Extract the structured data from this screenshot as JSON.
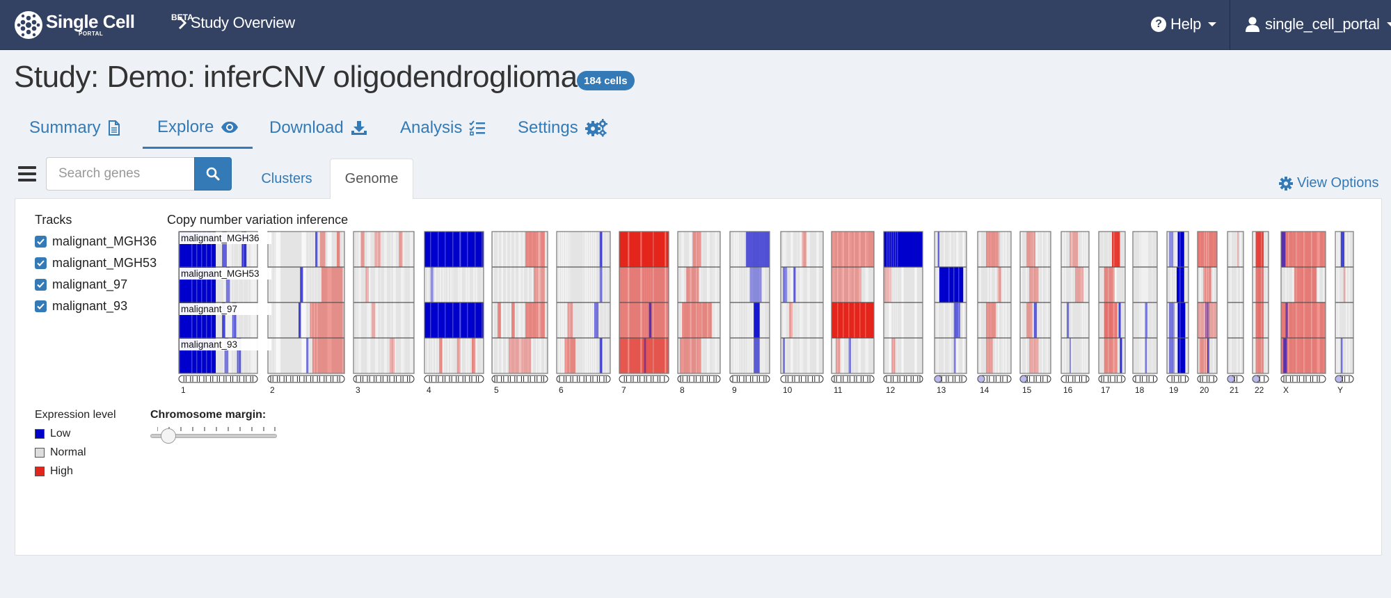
{
  "navbar": {
    "brand_title": "Single Cell",
    "brand_beta": "BETA",
    "brand_portal": "PORTAL",
    "breadcrumb": "Study Overview",
    "help_label": "Help",
    "user_label": "single_cell_portal",
    "bg_color": "#334263"
  },
  "study": {
    "title": "Study: Demo: inferCNV oligodendroglioma",
    "cells_badge": "184 cells"
  },
  "main_tabs": [
    {
      "label": "Summary",
      "icon": "file-icon"
    },
    {
      "label": "Explore",
      "icon": "eye-icon",
      "active": true
    },
    {
      "label": "Download",
      "icon": "download-icon"
    },
    {
      "label": "Analysis",
      "icon": "tasks-icon"
    },
    {
      "label": "Settings",
      "icon": "gears-icon"
    }
  ],
  "toolbar": {
    "search_placeholder": "Search genes",
    "sub_tabs": [
      "Clusters",
      "Genome"
    ],
    "active_sub_tab": "Genome",
    "view_options": "View Options"
  },
  "tracks": {
    "title": "Tracks",
    "items": [
      {
        "label": "malignant_MGH36",
        "checked": true
      },
      {
        "label": "malignant_MGH53",
        "checked": true
      },
      {
        "label": "malignant_97",
        "checked": true
      },
      {
        "label": "malignant_93",
        "checked": true
      }
    ]
  },
  "chart_data": {
    "type": "heatmap",
    "title": "Copy number variation inference",
    "chromosomes": [
      "1",
      "2",
      "3",
      "4",
      "5",
      "6",
      "7",
      "8",
      "9",
      "10",
      "11",
      "12",
      "13",
      "14",
      "15",
      "16",
      "17",
      "18",
      "19",
      "20",
      "21",
      "22",
      "X",
      "Y"
    ],
    "track_labels": [
      "malignant_MGH36",
      "malignant_MGH53",
      "malignant_97",
      "malignant_93"
    ],
    "colors": {
      "low": "#0000cc",
      "normal": "#dddddd",
      "high": "#e4251c"
    }
  },
  "legend": {
    "title": "Expression level",
    "items": [
      {
        "label": "Low",
        "color": "#0000cc"
      },
      {
        "label": "Normal",
        "color": "#dddddd"
      },
      {
        "label": "High",
        "color": "#e4251c"
      }
    ]
  },
  "chromosome_margin": {
    "label": "Chromosome margin:"
  }
}
